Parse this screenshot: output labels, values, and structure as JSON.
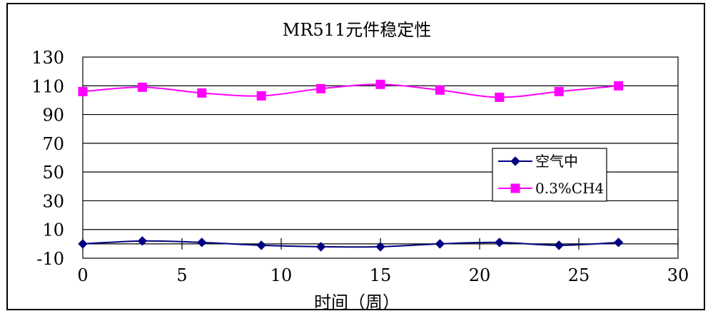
{
  "chart_data": {
    "type": "line",
    "title": "MR511元件稳定性",
    "xlabel": "时间（周）",
    "ylabel": "",
    "xlim": [
      0,
      30
    ],
    "ylim": [
      -10,
      130
    ],
    "xticks": [
      "0",
      "5",
      "10",
      "15",
      "20",
      "25",
      "30"
    ],
    "yticks": [
      "130",
      "110",
      "90",
      "70",
      "50",
      "30",
      "10",
      "-10"
    ],
    "grid": "horizontal",
    "legend_position": "right",
    "x": [
      0,
      3,
      6,
      9,
      12,
      15,
      18,
      21,
      24,
      27
    ],
    "series": [
      {
        "name": "空气中",
        "color": "#000080",
        "marker": "diamond",
        "values": [
          0,
          2,
          1,
          -1,
          -2,
          -2,
          0,
          1,
          -1,
          1
        ]
      },
      {
        "name": "0.3%CH4",
        "color": "#ff00ff",
        "marker": "square",
        "values": [
          106,
          109,
          105,
          103,
          108,
          111,
          107,
          102,
          106,
          110
        ]
      }
    ]
  }
}
